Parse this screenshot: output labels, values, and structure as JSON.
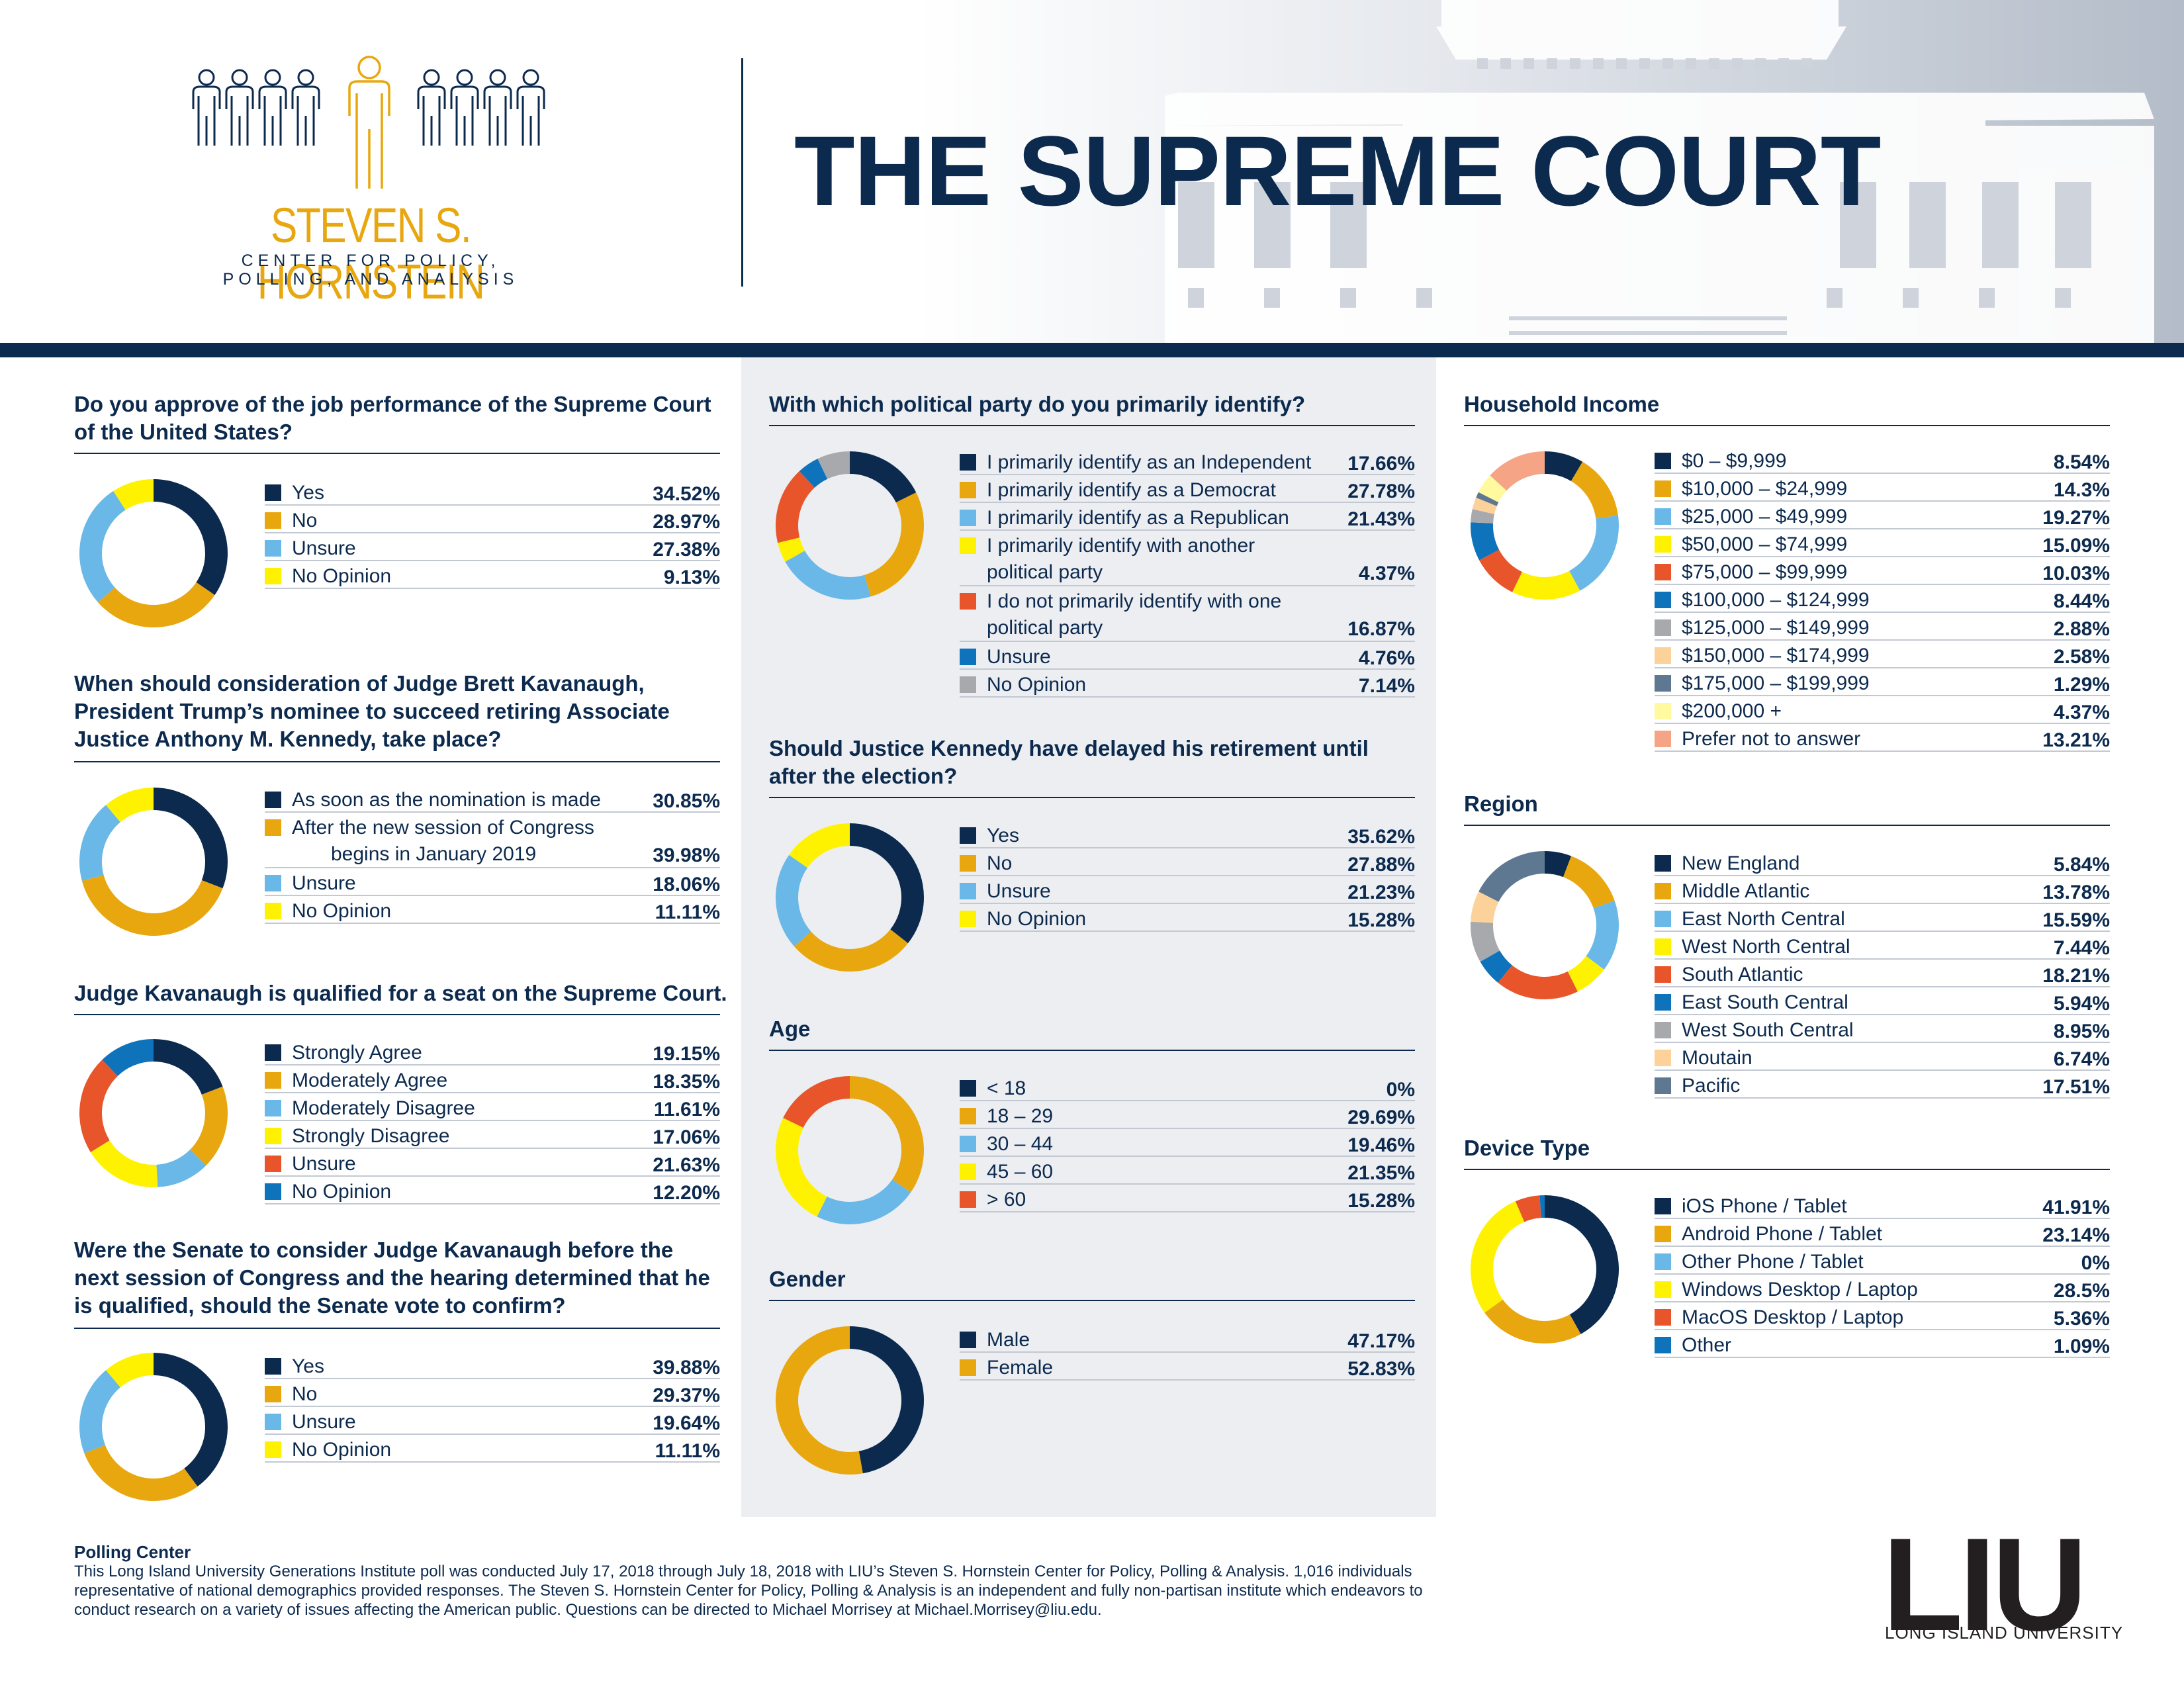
{
  "header": {
    "title": "THE SUPREME COURT",
    "logo_name": "STEVEN S. HORNSTEIN",
    "logo_sub_line1": "CENTER FOR POLICY,",
    "logo_sub_line2": "POLLING, AND ANALYSIS"
  },
  "colors": {
    "navy": "#0c2a4e",
    "gold": "#e8a70e",
    "light_blue": "#6ab8e8",
    "yellow": "#fff200",
    "orange_red": "#e8552a",
    "medium_blue": "#0e73bb",
    "gray": "#a7a9ac",
    "peach": "#fcd29a",
    "slate": "#5f7892",
    "pale_yellow": "#fff9a0",
    "salmon": "#f5a585"
  },
  "chart_data": [
    {
      "id": "q1",
      "type": "pie",
      "title": "Do you approve of the job performance of the Supreme Court of the United States?",
      "labels": [
        "Yes",
        "No",
        "Unsure",
        "No Opinion"
      ],
      "values": [
        34.52,
        28.97,
        27.38,
        9.13
      ],
      "value_labels": [
        "34.52%",
        "28.97%",
        "27.38%",
        "9.13%"
      ],
      "colors": [
        "#0c2a4e",
        "#e8a70e",
        "#6ab8e8",
        "#fff200"
      ]
    },
    {
      "id": "q2",
      "type": "pie",
      "title": "When should consideration of Judge Brett Kavanaugh, President Trump’s nominee to succeed retiring Associate Justice Anthony M. Kennedy, take place?",
      "labels": [
        "As soon as the nomination is made",
        "After the new session of Congress begins in January 2019",
        "Unsure",
        "No Opinion"
      ],
      "values": [
        30.85,
        39.98,
        18.06,
        11.11
      ],
      "value_labels": [
        "30.85%",
        "39.98%",
        "18.06%",
        "11.11%"
      ],
      "colors": [
        "#0c2a4e",
        "#e8a70e",
        "#6ab8e8",
        "#fff200"
      ]
    },
    {
      "id": "q3",
      "type": "pie",
      "title": "Judge Kavanaugh is qualified for a seat on the Supreme Court.",
      "labels": [
        "Strongly Agree",
        "Moderately Agree",
        "Moderately Disagree",
        "Strongly Disagree",
        "Unsure",
        "No Opinion"
      ],
      "values": [
        19.15,
        18.35,
        11.61,
        17.06,
        21.63,
        12.2
      ],
      "value_labels": [
        "19.15%",
        "18.35%",
        "11.61%",
        "17.06%",
        "21.63%",
        "12.20%"
      ],
      "colors": [
        "#0c2a4e",
        "#e8a70e",
        "#6ab8e8",
        "#fff200",
        "#e8552a",
        "#0e73bb"
      ]
    },
    {
      "id": "q4",
      "type": "pie",
      "title": "Were the Senate to consider Judge Kavanaugh before the next session of Congress and the hearing determined that he is qualified, should the Senate vote to confirm?",
      "labels": [
        "Yes",
        "No",
        "Unsure",
        "No Opinion"
      ],
      "values": [
        39.88,
        29.37,
        19.64,
        11.11
      ],
      "value_labels": [
        "39.88%",
        "29.37%",
        "19.64%",
        "11.11%"
      ],
      "colors": [
        "#0c2a4e",
        "#e8a70e",
        "#6ab8e8",
        "#fff200"
      ]
    },
    {
      "id": "q5",
      "type": "pie",
      "title": "With which political party do you primarily identify?",
      "labels": [
        "I primarily identify as an Independent",
        "I primarily identify as a Democrat",
        "I primarily identify as a Republican",
        "I primarily identify with another political party",
        "I do not primarily identify with one political party",
        "Unsure",
        "No Opinion"
      ],
      "values": [
        17.66,
        27.78,
        21.43,
        4.37,
        16.87,
        4.76,
        7.14
      ],
      "value_labels": [
        "17.66%",
        "27.78%",
        "21.43%",
        "4.37%",
        "16.87%",
        "4.76%",
        "7.14%"
      ],
      "colors": [
        "#0c2a4e",
        "#e8a70e",
        "#6ab8e8",
        "#fff200",
        "#e8552a",
        "#0e73bb",
        "#a7a9ac"
      ]
    },
    {
      "id": "q6",
      "type": "pie",
      "title": "Should Justice Kennedy have delayed his retirement until after the election?",
      "labels": [
        "Yes",
        "No",
        "Unsure",
        "No Opinion"
      ],
      "values": [
        35.62,
        27.88,
        21.23,
        15.28
      ],
      "value_labels": [
        "35.62%",
        "27.88%",
        "21.23%",
        "15.28%"
      ],
      "colors": [
        "#0c2a4e",
        "#e8a70e",
        "#6ab8e8",
        "#fff200"
      ]
    },
    {
      "id": "age",
      "type": "pie",
      "title": "Age",
      "labels": [
        "< 18",
        "18 – 29",
        "30 – 44",
        "45 – 60",
        "> 60"
      ],
      "values": [
        0,
        29.69,
        19.46,
        21.35,
        15.28
      ],
      "value_labels": [
        "0%",
        "29.69%",
        "19.46%",
        "21.35%",
        "15.28%"
      ],
      "colors": [
        "#0c2a4e",
        "#e8a70e",
        "#6ab8e8",
        "#fff200",
        "#e8552a"
      ]
    },
    {
      "id": "gender",
      "type": "pie",
      "title": "Gender",
      "labels": [
        "Male",
        "Female"
      ],
      "values": [
        47.17,
        52.83
      ],
      "value_labels": [
        "47.17%",
        "52.83%"
      ],
      "colors": [
        "#0c2a4e",
        "#e8a70e"
      ]
    },
    {
      "id": "income",
      "type": "pie",
      "title": "Household Income",
      "labels": [
        "$0 – $9,999",
        "$10,000 – $24,999",
        "$25,000 – $49,999",
        "$50,000 – $74,999",
        "$75,000 – $99,999",
        "$100,000 – $124,999",
        "$125,000 – $149,999",
        "$150,000 – $174,999",
        "$175,000 – $199,999",
        "$200,000 +",
        "Prefer not to answer"
      ],
      "values": [
        8.54,
        14.3,
        19.27,
        15.09,
        10.03,
        8.44,
        2.88,
        2.58,
        1.29,
        4.37,
        13.21
      ],
      "value_labels": [
        "8.54%",
        "14.3%",
        "19.27%",
        "15.09%",
        "10.03%",
        "8.44%",
        "2.88%",
        "2.58%",
        "1.29%",
        "4.37%",
        "13.21%"
      ],
      "colors": [
        "#0c2a4e",
        "#e8a70e",
        "#6ab8e8",
        "#fff200",
        "#e8552a",
        "#0e73bb",
        "#a7a9ac",
        "#fcd29a",
        "#5f7892",
        "#fff9a0",
        "#f5a585"
      ]
    },
    {
      "id": "region",
      "type": "pie",
      "title": "Region",
      "labels": [
        "New England",
        "Middle Atlantic",
        "East North Central",
        "West North Central",
        "South Atlantic",
        "East South Central",
        "West South Central",
        "Moutain",
        "Pacific"
      ],
      "values": [
        5.84,
        13.78,
        15.59,
        7.44,
        18.21,
        5.94,
        8.95,
        6.74,
        17.51
      ],
      "value_labels": [
        "5.84%",
        "13.78%",
        "15.59%",
        "7.44%",
        "18.21%",
        "5.94%",
        "8.95%",
        "6.74%",
        "17.51%"
      ],
      "colors": [
        "#0c2a4e",
        "#e8a70e",
        "#6ab8e8",
        "#fff200",
        "#e8552a",
        "#0e73bb",
        "#a7a9ac",
        "#fcd29a",
        "#5f7892"
      ]
    },
    {
      "id": "device",
      "type": "pie",
      "title": "Device Type",
      "labels": [
        "iOS Phone / Tablet",
        "Android Phone / Tablet",
        "Other Phone / Tablet",
        "Windows Desktop / Laptop",
        "MacOS Desktop / Laptop",
        "Other"
      ],
      "values": [
        41.91,
        23.14,
        0,
        28.5,
        5.36,
        1.09
      ],
      "value_labels": [
        "41.91%",
        "23.14%",
        "0%",
        "28.5%",
        "5.36%",
        "1.09%"
      ],
      "colors": [
        "#0c2a4e",
        "#e8a70e",
        "#6ab8e8",
        "#fff200",
        "#e8552a",
        "#0e73bb"
      ]
    }
  ],
  "footer": {
    "heading": "Polling Center",
    "text": "This Long Island University Generations Institute poll was conducted July 17, 2018 through July 18, 2018 with LIU’s Steven S. Hornstein Center for Policy, Polling & Analysis. 1,016 individuals representative of national demographics provided responses. The Steven S. Hornstein Center for Policy, Polling & Analysis is an independent and fully non-partisan institute which endeavors to conduct research on a variety of issues affecting the American public. Questions can be directed to Michael Morrisey at Michael.Morrisey@liu.edu.",
    "brand_mark": "LIU",
    "brand_sub": "LONG ISLAND UNIVERSITY"
  }
}
